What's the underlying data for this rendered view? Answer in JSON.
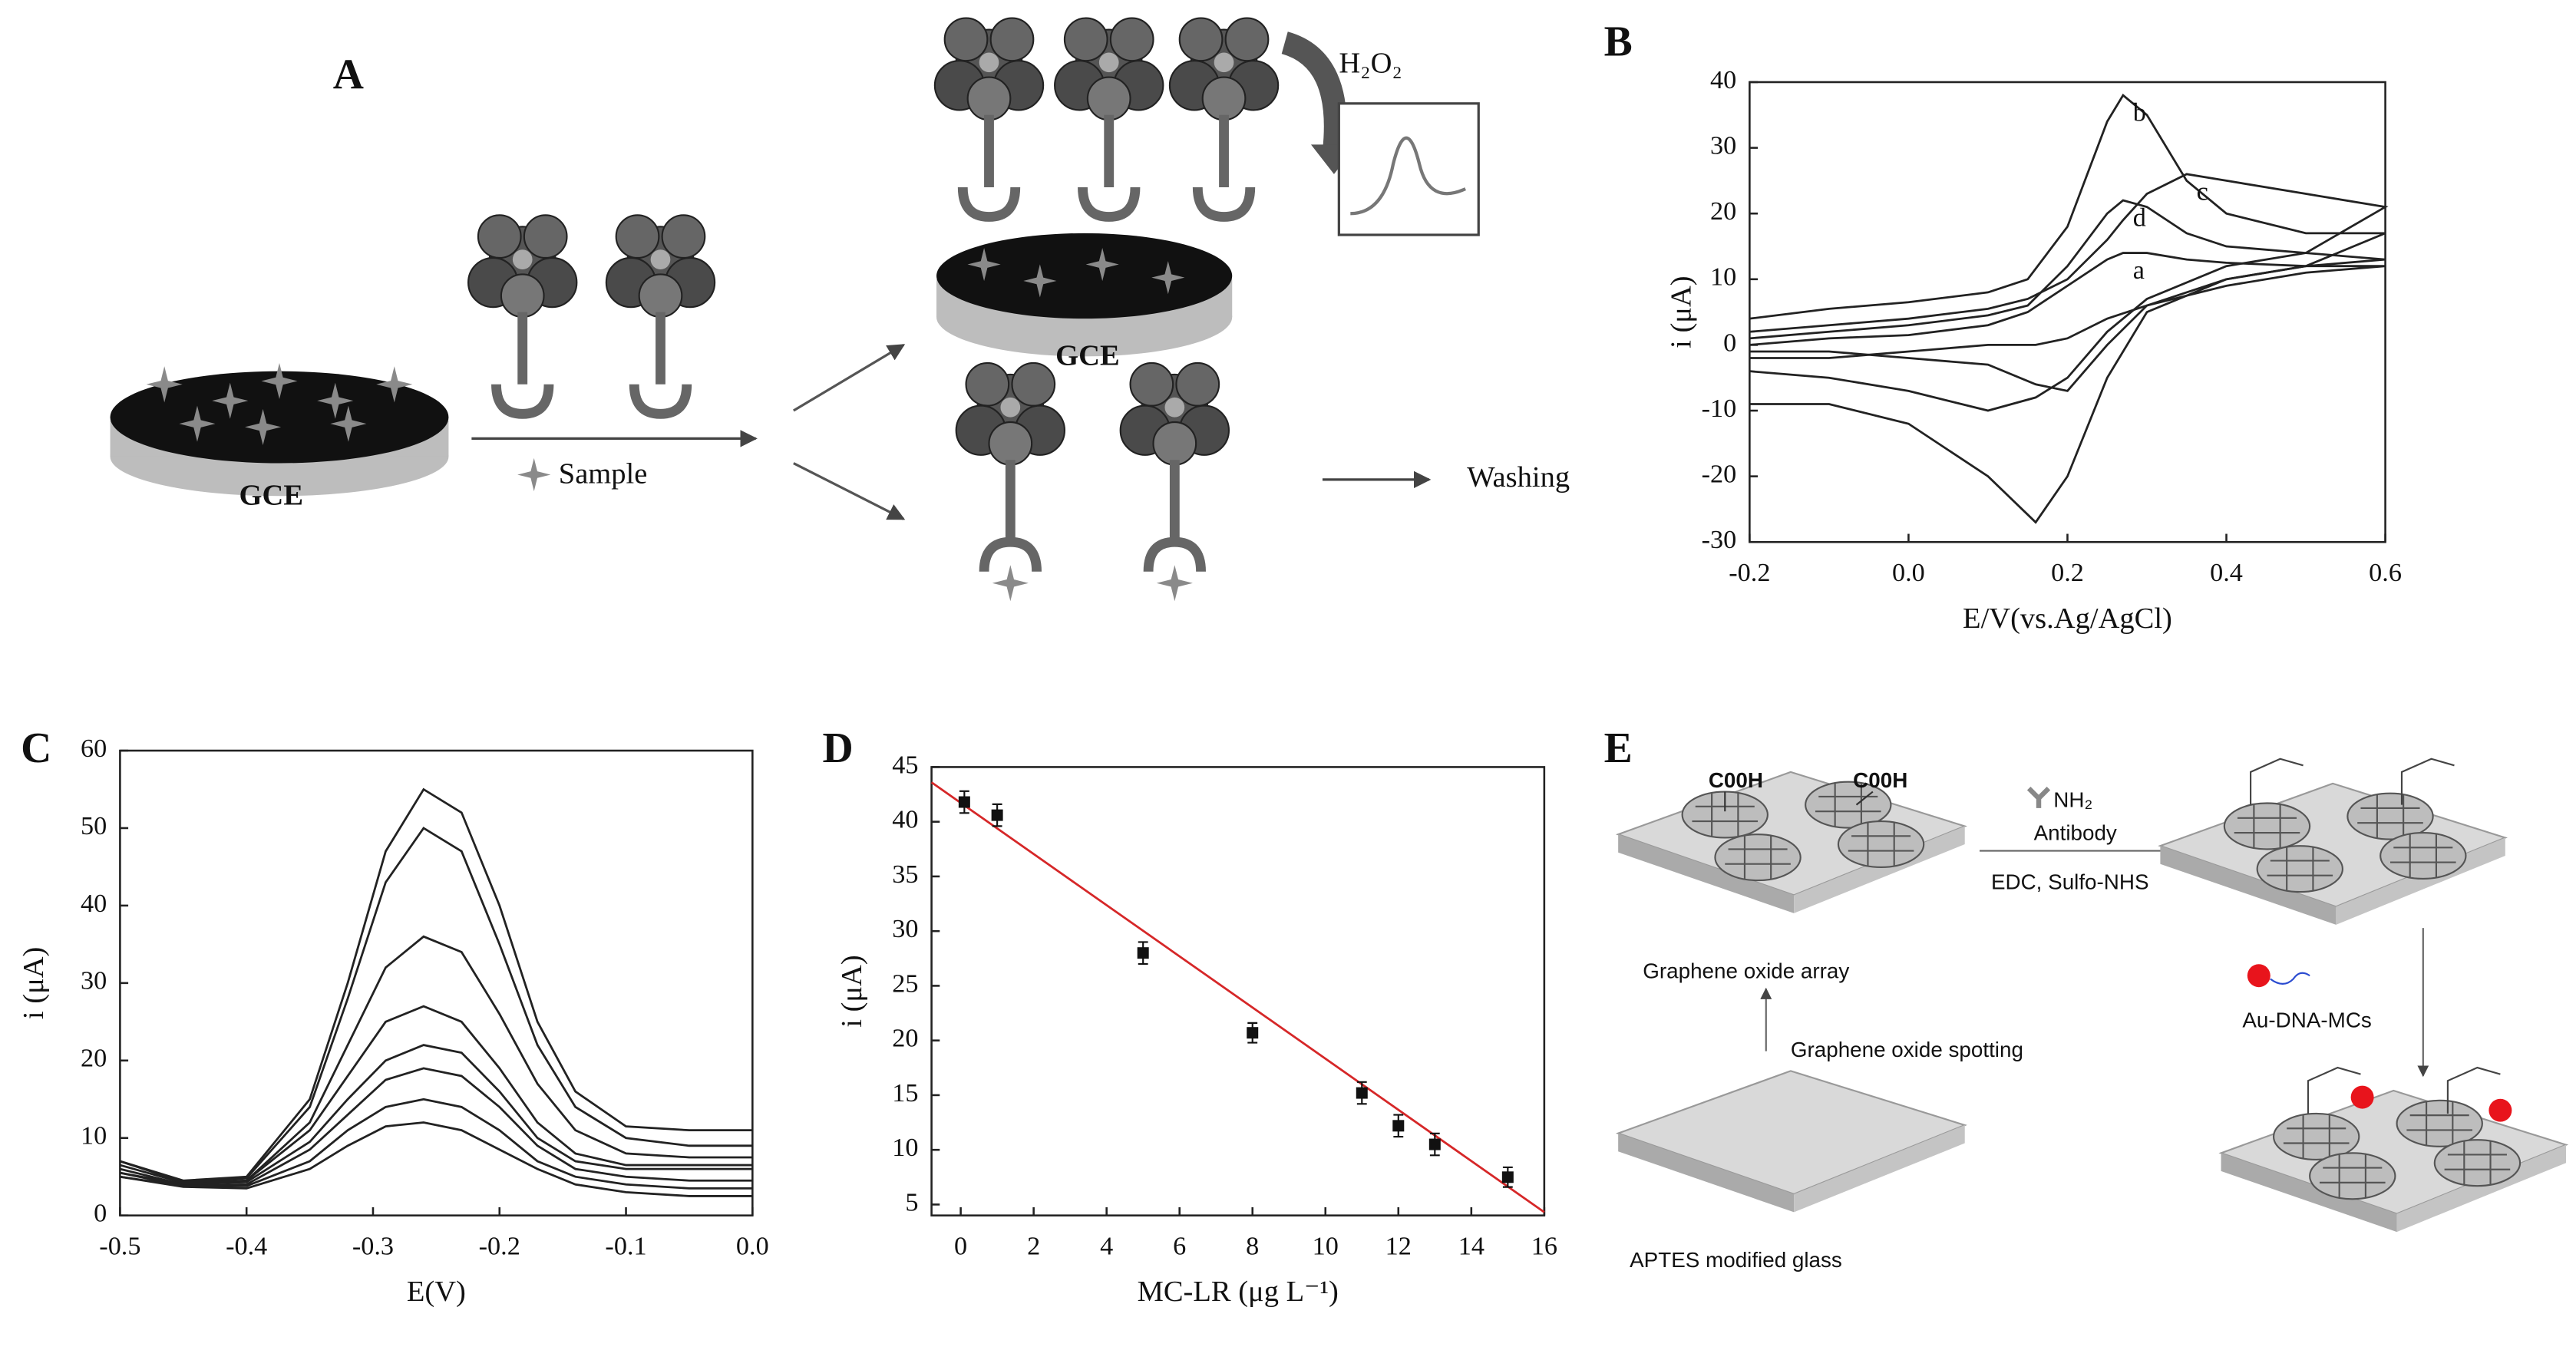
{
  "panel_labels": [
    "A",
    "B",
    "C",
    "D",
    "E"
  ],
  "diagram_a": {
    "gce_labels": [
      "GCE",
      "GCE"
    ],
    "sample": "Sample",
    "h2o2": "H₂O₂",
    "washing": "Washing"
  },
  "chart_data": [
    {
      "type": "line",
      "xlabel": "E/V(vs.Ag/AgCl)",
      "ylabel": "i (μA)",
      "x": [
        -0.2,
        -0.1,
        0,
        0.1,
        0.15,
        0.2,
        0.25,
        0.27,
        0.3,
        0.35,
        0.4,
        0.5,
        0.6,
        0.5,
        0.4,
        0.3,
        0.25,
        0.2,
        0.16,
        0.1,
        0,
        -0.1,
        -0.2
      ],
      "series": [
        {
          "name": "a",
          "color": "#222",
          "values": [
            0,
            1,
            1.5,
            3,
            5,
            9,
            13,
            14,
            14,
            13,
            12.5,
            12,
            12,
            11,
            9,
            6,
            4,
            1,
            0,
            0,
            -1,
            -2,
            -2
          ]
        },
        {
          "name": "b",
          "color": "#222",
          "values": [
            4,
            5.5,
            6.5,
            8,
            10,
            18,
            34,
            38,
            35,
            25,
            20,
            17,
            17,
            12,
            10,
            5,
            -5,
            -20,
            -27,
            -20,
            -12,
            -9,
            -9
          ]
        },
        {
          "name": "c",
          "color": "#222",
          "values": [
            2,
            3,
            4,
            5.5,
            7,
            10,
            16,
            19,
            23,
            26,
            25,
            23,
            21,
            14,
            12,
            7,
            2,
            -5,
            -8,
            -10,
            -7,
            -5,
            -4
          ]
        },
        {
          "name": "d",
          "color": "#222",
          "values": [
            1,
            2,
            3,
            4.5,
            6,
            12,
            20,
            22,
            21,
            17,
            15,
            14,
            13,
            12,
            10,
            6,
            0,
            -7,
            -6,
            -3,
            -2,
            -1,
            -1
          ]
        }
      ],
      "xlim": [
        -0.2,
        0.6
      ],
      "ylim": [
        -30,
        40
      ],
      "xticks": [
        -0.2,
        {
          "value": 0,
          "label": "0.0"
        },
        0.2,
        0.4,
        0.6
      ],
      "yticks": [
        -30,
        -20,
        -10,
        0,
        10,
        20,
        30,
        40
      ]
    },
    {
      "type": "line",
      "xlabel": "E(V)",
      "ylabel": "i (μA)",
      "x": [
        -0.5,
        -0.45,
        -0.4,
        -0.35,
        -0.32,
        -0.29,
        -0.26,
        -0.23,
        -0.2,
        -0.17,
        -0.14,
        -0.1,
        -0.05,
        0
      ],
      "series": [
        {
          "color": "#222",
          "values": [
            7,
            4.5,
            5,
            15,
            30,
            47,
            55,
            52,
            40,
            25,
            16,
            11.5,
            11,
            11
          ]
        },
        {
          "color": "#222",
          "values": [
            7,
            4.3,
            4.8,
            14,
            28,
            43,
            50,
            47,
            35,
            22,
            14,
            10,
            9,
            9
          ]
        },
        {
          "color": "#222",
          "values": [
            6.5,
            4.2,
            4.5,
            12,
            22,
            32,
            36,
            34,
            26,
            17,
            11,
            8,
            7.5,
            7.5
          ]
        },
        {
          "color": "#222",
          "values": [
            6,
            4,
            4.5,
            11,
            18,
            25,
            27,
            25,
            19,
            12,
            8,
            6.5,
            6.5,
            6.5
          ]
        },
        {
          "color": "#222",
          "values": [
            5.5,
            4,
            4.3,
            9.5,
            15,
            20,
            22,
            21,
            16,
            10,
            7,
            6,
            6,
            6
          ]
        },
        {
          "color": "#222",
          "values": [
            5.5,
            3.8,
            4,
            8.5,
            13,
            17.5,
            19,
            18,
            14,
            9,
            6,
            5,
            4.5,
            4.5
          ]
        },
        {
          "color": "#222",
          "values": [
            5,
            3.8,
            3.8,
            7,
            11,
            14,
            15,
            14,
            11,
            7,
            5,
            4,
            3.5,
            3.5
          ]
        },
        {
          "color": "#222",
          "values": [
            5,
            3.7,
            3.5,
            6,
            9,
            11.5,
            12,
            11,
            8.5,
            6,
            4,
            3,
            2.5,
            2.5
          ]
        }
      ],
      "xlim": [
        -0.5,
        0
      ],
      "ylim": [
        0,
        60
      ],
      "xticks": [
        -0.5,
        -0.4,
        -0.3,
        -0.2,
        -0.1,
        {
          "value": 0,
          "label": "0.0"
        }
      ],
      "yticks": [
        0,
        10,
        20,
        30,
        40,
        50,
        60
      ]
    },
    {
      "type": "scatter",
      "xlabel": "MC-LR (μg L⁻¹)",
      "ylabel": "i (μA)",
      "x": [
        0.1,
        1,
        5,
        8,
        11,
        12,
        13,
        15
      ],
      "values": [
        41.8,
        40.6,
        28,
        20.7,
        15.2,
        12.2,
        10.5,
        7.5
      ],
      "errors": [
        1,
        1,
        1,
        0.9,
        1,
        1,
        1,
        0.9
      ],
      "color": "#111",
      "fit": {
        "x": [
          -0.8,
          16
        ],
        "values": [
          43.6,
          4.3
        ],
        "color": "#d62728"
      },
      "xlim": [
        -0.8,
        16
      ],
      "ylim": [
        4,
        45
      ],
      "xticks": [
        0,
        2,
        4,
        6,
        8,
        10,
        12,
        14,
        16
      ],
      "yticks": [
        5,
        10,
        15,
        20,
        25,
        30,
        35,
        40,
        45
      ]
    }
  ],
  "diagram_e": {
    "cooh_labels": [
      "C00H",
      "C00H"
    ],
    "nh2": "NH₂",
    "antibody": "Antibody",
    "reagents": "EDC, Sulfo-NHS",
    "go_array": "Graphene oxide array",
    "go_spotting": "Graphene oxide spotting",
    "aptes_glass": "APTES modified glass",
    "au_dna": "Au-DNA-MCs"
  }
}
